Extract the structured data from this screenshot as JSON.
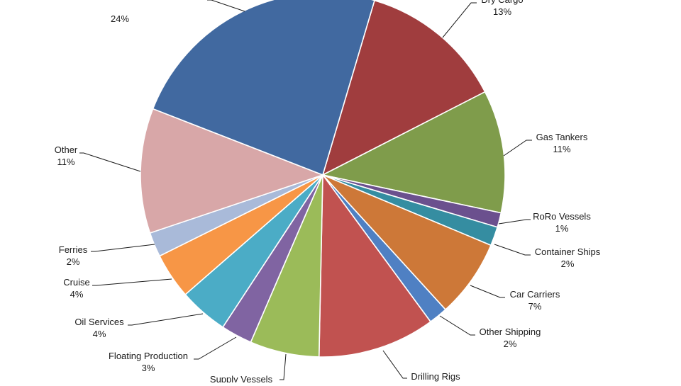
{
  "chart_data": {
    "type": "pie",
    "title": "",
    "colors": {
      "accent_blue": "#4169a0",
      "dark_red": "#a03d3e",
      "olive_green": "#7f9c4b",
      "purple": "#6b508e",
      "teal": "#358da1",
      "orange_brown": "#cd7838",
      "light_blue": "#4f80c3",
      "red": "#c15250",
      "light_green": "#9bbb59",
      "violet": "#8064a2",
      "aqua": "#4bacc6",
      "orange": "#f79646",
      "lavender": "#a9bad9",
      "pink": "#d8a7a8"
    },
    "slices": [
      {
        "label": "Dry Cargo",
        "pct": "13%",
        "value": 13,
        "color": "#a03d3e",
        "visible": true
      },
      {
        "label": "Gas Tankers",
        "pct": "11%",
        "value": 11,
        "color": "#7f9c4b",
        "visible": true
      },
      {
        "label": "RoRo Vessels",
        "pct": "1%",
        "value": 1.3,
        "color": "#6b508e",
        "visible": true
      },
      {
        "label": "Container Ships",
        "pct": "2%",
        "value": 1.7,
        "color": "#358da1",
        "visible": true
      },
      {
        "label": "Car Carriers",
        "pct": "7%",
        "value": 7,
        "color": "#cd7838",
        "visible": true
      },
      {
        "label": "Other Shipping",
        "pct": "2%",
        "value": 1.7,
        "color": "#4f80c3",
        "visible": true
      },
      {
        "label": "Drilling Rigs",
        "pct": "",
        "value": 10.5,
        "color": "#c15250",
        "visible": true
      },
      {
        "label": "Supply Vessels",
        "pct": "",
        "value": 6.2,
        "color": "#9bbb59",
        "visible": true
      },
      {
        "label": "Floating Production",
        "pct": "3%",
        "value": 2.8,
        "color": "#8064a2",
        "visible": true
      },
      {
        "label": "Oil Services",
        "pct": "4%",
        "value": 4.4,
        "color": "#4bacc6",
        "visible": true
      },
      {
        "label": "Cruise",
        "pct": "4%",
        "value": 4.1,
        "color": "#f79646",
        "visible": true
      },
      {
        "label": "Ferries",
        "pct": "2%",
        "value": 2.2,
        "color": "#a9bad9",
        "visible": true
      },
      {
        "label": "Other",
        "pct": "11%",
        "value": 11.2,
        "color": "#d8a7a8",
        "visible": true
      },
      {
        "label": "",
        "pct": "24%",
        "value": 23.9,
        "color": "#4169a0",
        "visible": true
      }
    ]
  }
}
